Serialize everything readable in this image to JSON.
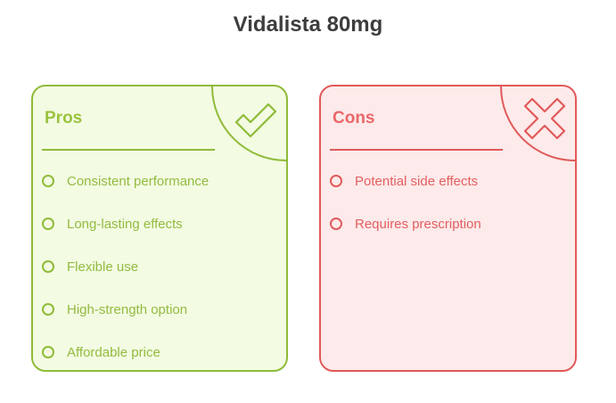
{
  "title": "Vidalista 80mg",
  "pros": {
    "heading": "Pros",
    "icon": "check-icon",
    "color": "#8fbb39",
    "items": [
      "Consistent performance",
      "Long-lasting effects",
      "Flexible use",
      "High-strength option",
      "Affordable price"
    ]
  },
  "cons": {
    "heading": "Cons",
    "icon": "x-icon",
    "color": "#e05a5a",
    "items": [
      "Potential side effects",
      "Requires prescription"
    ]
  }
}
